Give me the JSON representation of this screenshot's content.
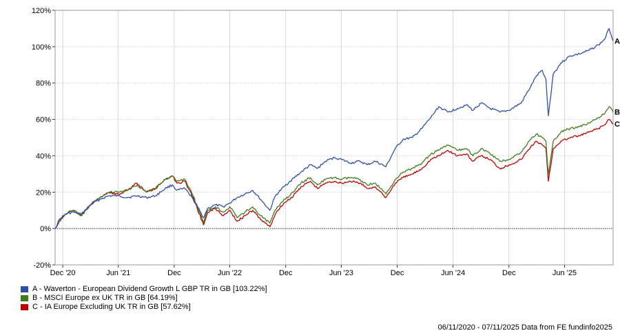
{
  "chart_data": {
    "type": "line",
    "yaxis": {
      "min": -20,
      "max": 120,
      "step": 20,
      "format": "percent",
      "tick_labels": [
        "-20%",
        "0%",
        "20%",
        "40%",
        "60%",
        "80%",
        "100%",
        "120%"
      ]
    },
    "xaxis": {
      "start": "2020-11-06",
      "end": "2025-11-07",
      "ticks": [
        {
          "label": "Dec '20",
          "date": "2020-12-01"
        },
        {
          "label": "Jun '21",
          "date": "2021-06-01"
        },
        {
          "label": "Dec",
          "date": "2021-12-01"
        },
        {
          "label": "Jun '22",
          "date": "2022-06-01"
        },
        {
          "label": "Dec",
          "date": "2022-12-01"
        },
        {
          "label": "Jun '23",
          "date": "2023-06-01"
        },
        {
          "label": "Dec",
          "date": "2023-12-01"
        },
        {
          "label": "Jun '24",
          "date": "2024-06-01"
        },
        {
          "label": "Dec",
          "date": "2024-12-01"
        },
        {
          "label": "Jun '25",
          "date": "2025-06-01"
        }
      ]
    },
    "grid": true,
    "zero_line": "dotted",
    "series": [
      {
        "key": "A",
        "name": "A - Waverton - European Dividend Growth L GBP TR in GB [103.22%]",
        "color": "#2f4fa8",
        "points": [
          [
            "2020-11-06",
            0
          ],
          [
            "2020-11-20",
            5
          ],
          [
            "2020-12-10",
            8
          ],
          [
            "2021-01-05",
            9
          ],
          [
            "2021-02-01",
            8
          ],
          [
            "2021-03-01",
            13
          ],
          [
            "2021-04-01",
            16
          ],
          [
            "2021-05-01",
            18
          ],
          [
            "2021-06-01",
            18
          ],
          [
            "2021-07-01",
            17
          ],
          [
            "2021-08-01",
            18
          ],
          [
            "2021-09-01",
            17
          ],
          [
            "2021-10-01",
            18
          ],
          [
            "2021-11-01",
            22
          ],
          [
            "2021-11-25",
            24
          ],
          [
            "2021-12-10",
            21
          ],
          [
            "2022-01-05",
            22
          ],
          [
            "2022-02-01",
            16
          ],
          [
            "2022-03-07",
            6
          ],
          [
            "2022-03-20",
            11
          ],
          [
            "2022-04-15",
            13
          ],
          [
            "2022-05-10",
            12
          ],
          [
            "2022-06-01",
            14
          ],
          [
            "2022-06-25",
            17
          ],
          [
            "2022-07-20",
            19
          ],
          [
            "2022-08-15",
            21
          ],
          [
            "2022-09-10",
            16
          ],
          [
            "2022-10-10",
            10
          ],
          [
            "2022-10-28",
            18
          ],
          [
            "2022-11-25",
            23
          ],
          [
            "2022-12-15",
            26
          ],
          [
            "2023-01-20",
            31
          ],
          [
            "2023-02-20",
            35
          ],
          [
            "2023-03-15",
            33
          ],
          [
            "2023-04-10",
            37
          ],
          [
            "2023-05-10",
            39
          ],
          [
            "2023-06-01",
            38
          ],
          [
            "2023-07-01",
            36
          ],
          [
            "2023-08-01",
            37
          ],
          [
            "2023-08-25",
            35
          ],
          [
            "2023-09-20",
            37
          ],
          [
            "2023-10-25",
            34
          ],
          [
            "2023-11-25",
            44
          ],
          [
            "2023-12-20",
            49
          ],
          [
            "2024-01-20",
            50
          ],
          [
            "2024-02-20",
            55
          ],
          [
            "2024-03-20",
            61
          ],
          [
            "2024-04-15",
            67
          ],
          [
            "2024-05-15",
            64
          ],
          [
            "2024-06-15",
            66
          ],
          [
            "2024-07-15",
            68
          ],
          [
            "2024-08-05",
            65
          ],
          [
            "2024-09-01",
            69
          ],
          [
            "2024-10-01",
            66
          ],
          [
            "2024-11-01",
            64
          ],
          [
            "2024-12-01",
            65
          ],
          [
            "2025-01-10",
            69
          ],
          [
            "2025-02-10",
            78
          ],
          [
            "2025-03-01",
            84
          ],
          [
            "2025-03-20",
            87
          ],
          [
            "2025-04-01",
            82
          ],
          [
            "2025-04-09",
            62
          ],
          [
            "2025-04-25",
            85
          ],
          [
            "2025-05-20",
            91
          ],
          [
            "2025-06-20",
            95
          ],
          [
            "2025-07-20",
            96
          ],
          [
            "2025-08-20",
            98
          ],
          [
            "2025-09-20",
            101
          ],
          [
            "2025-10-10",
            104
          ],
          [
            "2025-10-25",
            110
          ],
          [
            "2025-11-07",
            103.22
          ]
        ]
      },
      {
        "key": "B",
        "name": "B - MSCI Europe ex UK TR in GB [64.19%]",
        "color": "#3f7d1f",
        "points": [
          [
            "2020-11-06",
            0
          ],
          [
            "2020-11-20",
            4
          ],
          [
            "2020-12-10",
            8
          ],
          [
            "2021-01-05",
            10
          ],
          [
            "2021-02-01",
            7
          ],
          [
            "2021-03-01",
            13
          ],
          [
            "2021-04-01",
            17
          ],
          [
            "2021-05-01",
            20
          ],
          [
            "2021-06-01",
            20
          ],
          [
            "2021-07-01",
            21
          ],
          [
            "2021-08-01",
            24
          ],
          [
            "2021-09-01",
            20
          ],
          [
            "2021-10-01",
            22
          ],
          [
            "2021-11-01",
            27
          ],
          [
            "2021-11-25",
            29
          ],
          [
            "2021-12-10",
            26
          ],
          [
            "2022-01-05",
            27
          ],
          [
            "2022-02-01",
            18
          ],
          [
            "2022-03-07",
            3
          ],
          [
            "2022-03-20",
            10
          ],
          [
            "2022-04-15",
            12
          ],
          [
            "2022-05-10",
            9
          ],
          [
            "2022-06-01",
            12
          ],
          [
            "2022-06-25",
            6
          ],
          [
            "2022-07-20",
            9
          ],
          [
            "2022-08-15",
            12
          ],
          [
            "2022-09-10",
            7
          ],
          [
            "2022-10-10",
            3
          ],
          [
            "2022-10-28",
            10
          ],
          [
            "2022-11-25",
            16
          ],
          [
            "2022-12-15",
            18
          ],
          [
            "2023-01-20",
            25
          ],
          [
            "2023-02-20",
            28
          ],
          [
            "2023-03-15",
            24
          ],
          [
            "2023-04-10",
            27
          ],
          [
            "2023-05-10",
            28
          ],
          [
            "2023-06-01",
            27
          ],
          [
            "2023-07-01",
            28
          ],
          [
            "2023-08-01",
            27
          ],
          [
            "2023-08-25",
            24
          ],
          [
            "2023-09-20",
            25
          ],
          [
            "2023-10-25",
            19
          ],
          [
            "2023-11-25",
            27
          ],
          [
            "2023-12-20",
            31
          ],
          [
            "2024-01-20",
            33
          ],
          [
            "2024-02-20",
            36
          ],
          [
            "2024-03-20",
            41
          ],
          [
            "2024-04-15",
            43
          ],
          [
            "2024-05-15",
            46
          ],
          [
            "2024-06-15",
            43
          ],
          [
            "2024-07-15",
            44
          ],
          [
            "2024-08-05",
            40
          ],
          [
            "2024-09-01",
            44
          ],
          [
            "2024-10-01",
            41
          ],
          [
            "2024-11-01",
            37
          ],
          [
            "2024-12-01",
            38
          ],
          [
            "2025-01-10",
            42
          ],
          [
            "2025-02-10",
            49
          ],
          [
            "2025-03-01",
            52
          ],
          [
            "2025-03-20",
            50
          ],
          [
            "2025-04-01",
            48
          ],
          [
            "2025-04-09",
            30
          ],
          [
            "2025-04-25",
            48
          ],
          [
            "2025-05-20",
            53
          ],
          [
            "2025-06-20",
            55
          ],
          [
            "2025-07-20",
            56
          ],
          [
            "2025-08-20",
            58
          ],
          [
            "2025-09-20",
            61
          ],
          [
            "2025-10-10",
            63
          ],
          [
            "2025-10-25",
            67
          ],
          [
            "2025-11-07",
            64.19
          ]
        ]
      },
      {
        "key": "C",
        "name": "C - IA Europe Excluding UK TR in GB [57.62%]",
        "color": "#c00000",
        "points": [
          [
            "2020-11-06",
            0
          ],
          [
            "2020-11-20",
            4
          ],
          [
            "2020-12-10",
            8
          ],
          [
            "2021-01-05",
            10
          ],
          [
            "2021-02-01",
            7
          ],
          [
            "2021-03-01",
            13
          ],
          [
            "2021-04-01",
            17
          ],
          [
            "2021-05-01",
            20
          ],
          [
            "2021-06-01",
            19
          ],
          [
            "2021-07-01",
            21
          ],
          [
            "2021-08-01",
            25
          ],
          [
            "2021-09-01",
            20
          ],
          [
            "2021-10-01",
            22
          ],
          [
            "2021-11-01",
            27
          ],
          [
            "2021-11-25",
            29
          ],
          [
            "2021-12-10",
            25
          ],
          [
            "2022-01-05",
            26
          ],
          [
            "2022-02-01",
            17
          ],
          [
            "2022-03-07",
            2
          ],
          [
            "2022-03-20",
            9
          ],
          [
            "2022-04-15",
            11
          ],
          [
            "2022-05-10",
            7
          ],
          [
            "2022-06-01",
            10
          ],
          [
            "2022-06-25",
            4
          ],
          [
            "2022-07-20",
            7
          ],
          [
            "2022-08-15",
            10
          ],
          [
            "2022-09-10",
            5
          ],
          [
            "2022-10-10",
            1
          ],
          [
            "2022-10-28",
            8
          ],
          [
            "2022-11-25",
            14
          ],
          [
            "2022-12-15",
            16
          ],
          [
            "2023-01-20",
            23
          ],
          [
            "2023-02-20",
            26
          ],
          [
            "2023-03-15",
            22
          ],
          [
            "2023-04-10",
            25
          ],
          [
            "2023-05-10",
            26
          ],
          [
            "2023-06-01",
            25
          ],
          [
            "2023-07-01",
            26
          ],
          [
            "2023-08-01",
            25
          ],
          [
            "2023-08-25",
            22
          ],
          [
            "2023-09-20",
            23
          ],
          [
            "2023-10-25",
            17
          ],
          [
            "2023-11-25",
            25
          ],
          [
            "2023-12-20",
            28
          ],
          [
            "2024-01-20",
            30
          ],
          [
            "2024-02-20",
            33
          ],
          [
            "2024-03-20",
            38
          ],
          [
            "2024-04-15",
            40
          ],
          [
            "2024-05-15",
            43
          ],
          [
            "2024-06-15",
            40
          ],
          [
            "2024-07-15",
            41
          ],
          [
            "2024-08-05",
            37
          ],
          [
            "2024-09-01",
            40
          ],
          [
            "2024-10-01",
            38
          ],
          [
            "2024-11-01",
            33
          ],
          [
            "2024-12-01",
            35
          ],
          [
            "2025-01-10",
            38
          ],
          [
            "2025-02-10",
            45
          ],
          [
            "2025-03-01",
            48
          ],
          [
            "2025-03-20",
            46
          ],
          [
            "2025-04-01",
            44
          ],
          [
            "2025-04-09",
            26
          ],
          [
            "2025-04-25",
            44
          ],
          [
            "2025-05-20",
            48
          ],
          [
            "2025-06-20",
            50
          ],
          [
            "2025-07-20",
            51
          ],
          [
            "2025-08-20",
            53
          ],
          [
            "2025-09-20",
            55
          ],
          [
            "2025-10-10",
            57
          ],
          [
            "2025-10-25",
            60
          ],
          [
            "2025-11-07",
            57.62
          ]
        ]
      }
    ]
  },
  "footer": {
    "text": "06/11/2020 - 07/11/2025 Data from FE fundinfo2025"
  }
}
